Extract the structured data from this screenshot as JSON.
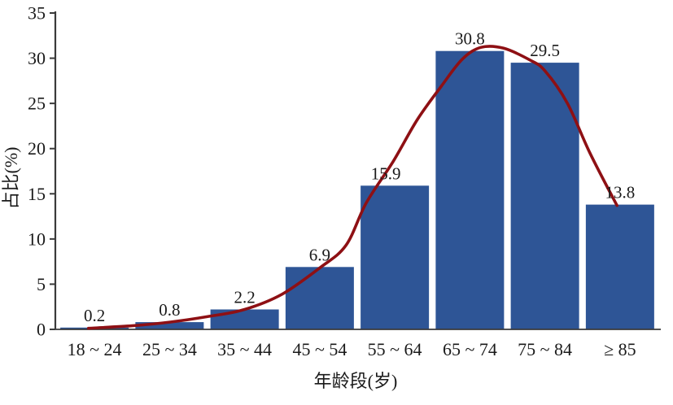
{
  "chart_data": {
    "type": "bar",
    "title": "",
    "xlabel": "年龄段(岁)",
    "ylabel": "占比(%)",
    "categories": [
      "18 ~ 24",
      "25 ~ 34",
      "35 ~ 44",
      "45 ~ 54",
      "55 ~ 64",
      "65 ~ 74",
      "75 ~ 84",
      "≥ 85"
    ],
    "values": [
      0.2,
      0.8,
      2.2,
      6.9,
      15.9,
      30.8,
      29.5,
      13.8
    ],
    "value_labels": [
      "0.2",
      "0.8",
      "2.2",
      "6.9",
      "15.9",
      "30.8",
      "29.5",
      "13.8"
    ],
    "ylim": [
      0,
      35
    ],
    "yticks": [
      0,
      5,
      10,
      15,
      20,
      25,
      30,
      35
    ],
    "grid": false,
    "legend": null,
    "bar_color": "#2e5596",
    "curve_color": "#8e1014",
    "axis_color": "#3a3a3a",
    "text_color": "#1a1a1a",
    "curve": {
      "type": "smooth-fit-line",
      "note": "x in bar-slot units (0 = center of first bar), y in percent",
      "points": [
        [
          -0.08,
          0.12
        ],
        [
          0.5,
          0.4
        ],
        [
          1.0,
          0.8
        ],
        [
          1.5,
          1.4
        ],
        [
          2.0,
          2.2
        ],
        [
          2.5,
          3.9
        ],
        [
          3.0,
          6.8
        ],
        [
          3.35,
          9.3
        ],
        [
          3.62,
          14.0
        ],
        [
          3.98,
          18.6
        ],
        [
          4.3,
          23.2
        ],
        [
          4.62,
          26.9
        ],
        [
          4.9,
          29.9
        ],
        [
          5.15,
          31.2
        ],
        [
          5.45,
          31.1
        ],
        [
          5.8,
          29.8
        ],
        [
          6.0,
          28.6
        ],
        [
          6.3,
          25.0
        ],
        [
          6.6,
          19.5
        ],
        [
          6.96,
          13.7
        ]
      ]
    }
  }
}
